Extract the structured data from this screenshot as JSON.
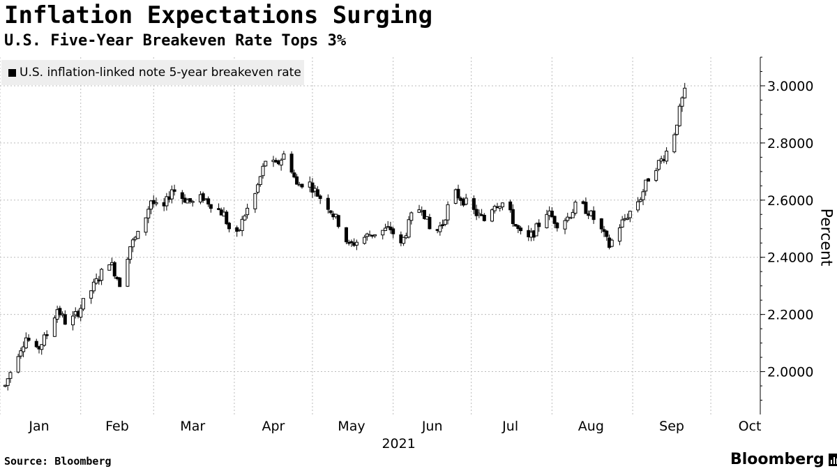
{
  "chart_data": {
    "type": "candlestick",
    "title": "Inflation Expectations Surging",
    "subtitle": "U.S. Five-Year Breakeven Rate Tops 3%",
    "legend": "U.S. inflation-linked note 5-year breakeven rate",
    "ylabel": "Percent",
    "xlabel": "2021",
    "ylim": [
      1.85,
      3.1
    ],
    "yticks": [
      "2.0000",
      "2.2000",
      "2.4000",
      "2.6000",
      "2.8000",
      "3.0000"
    ],
    "months": [
      "Jan",
      "Feb",
      "Mar",
      "Apr",
      "May",
      "Jun",
      "Jul",
      "Aug",
      "Sep",
      "Oct"
    ],
    "x_range": [
      0,
      292
    ],
    "month_label_days": [
      15,
      45,
      74,
      105,
      135,
      166,
      196,
      227,
      258,
      288
    ],
    "month_boundary_days": [
      0,
      31,
      59,
      90,
      120,
      151,
      181,
      212,
      243,
      273
    ],
    "series": [
      {
        "name": "U.S. inflation-linked note 5-year breakeven rate",
        "points": [
          [
            2,
            1.95
          ],
          [
            6,
            2.05
          ],
          [
            10,
            2.12
          ],
          [
            14,
            2.07
          ],
          [
            18,
            2.13
          ],
          [
            22,
            2.22
          ],
          [
            26,
            2.16
          ],
          [
            30,
            2.21
          ],
          [
            34,
            2.27
          ],
          [
            38,
            2.33
          ],
          [
            42,
            2.39
          ],
          [
            46,
            2.31
          ],
          [
            50,
            2.44
          ],
          [
            54,
            2.49
          ],
          [
            58,
            2.6
          ],
          [
            62,
            2.55
          ],
          [
            66,
            2.64
          ],
          [
            70,
            2.61
          ],
          [
            74,
            2.59
          ],
          [
            78,
            2.61
          ],
          [
            82,
            2.58
          ],
          [
            86,
            2.55
          ],
          [
            90,
            2.45
          ],
          [
            94,
            2.55
          ],
          [
            98,
            2.62
          ],
          [
            102,
            2.74
          ],
          [
            106,
            2.72
          ],
          [
            110,
            2.77
          ],
          [
            114,
            2.65
          ],
          [
            118,
            2.67
          ],
          [
            122,
            2.62
          ],
          [
            126,
            2.58
          ],
          [
            130,
            2.52
          ],
          [
            134,
            2.44
          ],
          [
            138,
            2.46
          ],
          [
            142,
            2.48
          ],
          [
            146,
            2.49
          ],
          [
            150,
            2.5
          ],
          [
            154,
            2.44
          ],
          [
            158,
            2.54
          ],
          [
            162,
            2.58
          ],
          [
            166,
            2.47
          ],
          [
            170,
            2.52
          ],
          [
            174,
            2.63
          ],
          [
            178,
            2.6
          ],
          [
            182,
            2.56
          ],
          [
            186,
            2.53
          ],
          [
            190,
            2.59
          ],
          [
            194,
            2.59
          ],
          [
            198,
            2.51
          ],
          [
            202,
            2.45
          ],
          [
            206,
            2.5
          ],
          [
            210,
            2.56
          ],
          [
            214,
            2.52
          ],
          [
            218,
            2.54
          ],
          [
            222,
            2.59
          ],
          [
            226,
            2.56
          ],
          [
            230,
            2.51
          ],
          [
            234,
            2.44
          ],
          [
            238,
            2.51
          ],
          [
            242,
            2.56
          ],
          [
            246,
            2.61
          ],
          [
            250,
            2.7
          ],
          [
            254,
            2.74
          ],
          [
            258,
            2.8
          ],
          [
            262,
            2.95
          ],
          [
            264,
            3.0
          ]
        ]
      }
    ]
  },
  "source": "Source: Bloomberg",
  "brand": "Bloomberg"
}
